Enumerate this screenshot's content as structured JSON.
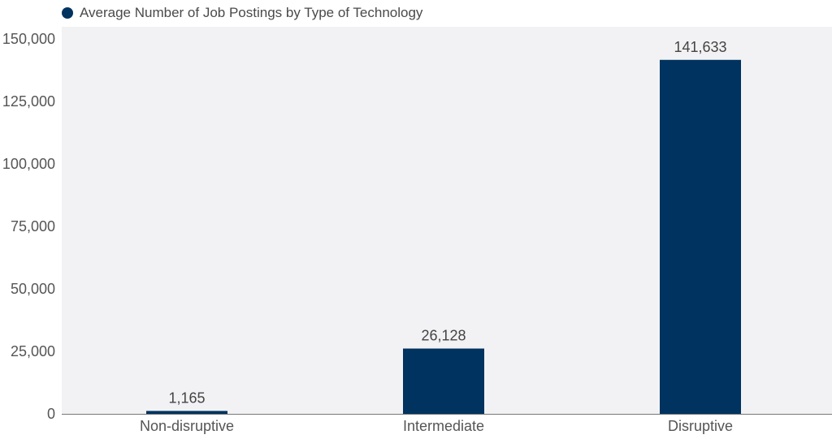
{
  "chart_data": {
    "type": "bar",
    "title": "",
    "xlabel": "",
    "ylabel": "",
    "categories": [
      "Non-disruptive",
      "Intermediate",
      "Disruptive"
    ],
    "series": [
      {
        "name": "Average Number of Job Postings by Type of Technology",
        "values": [
          1165,
          26128,
          141633
        ],
        "value_labels": [
          "1,165",
          "26,128",
          "141,633"
        ],
        "color": "#00335f"
      }
    ],
    "ylim": [
      0,
      150000
    ],
    "y_ticks": [
      0,
      25000,
      50000,
      75000,
      100000,
      125000,
      150000
    ],
    "y_tick_labels": [
      "0",
      "25,000",
      "50,000",
      "75,000",
      "100,000",
      "125,000",
      "150,000"
    ],
    "grid": false,
    "plot_background": "#f2f2f4",
    "legend_position": "top-left"
  }
}
